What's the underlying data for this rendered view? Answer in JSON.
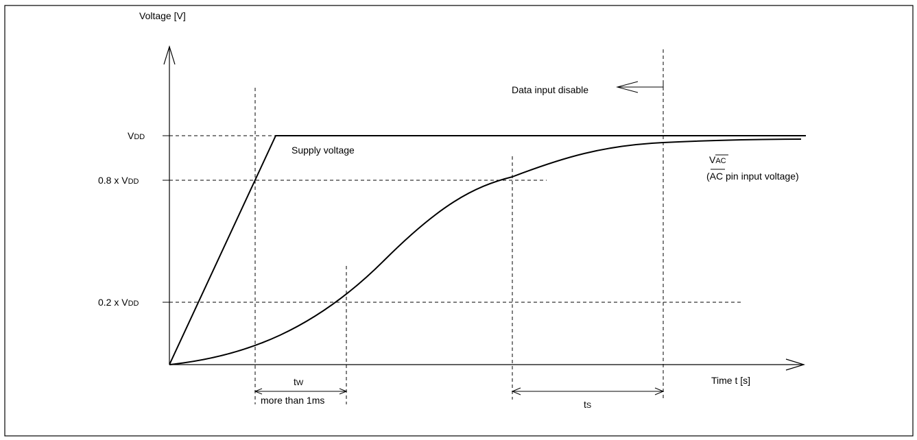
{
  "axes": {
    "y_label": "Voltage [V]",
    "x_label": "Time t [s]"
  },
  "y_ticks": {
    "vdd": {
      "main": "V",
      "sub": "DD"
    },
    "vdd_08": {
      "prefix": "0.8 x V",
      "sub": "DD"
    },
    "vdd_02": {
      "prefix": "0.2 x V",
      "sub": "DD"
    }
  },
  "curves": {
    "supply_label": "Supply voltage",
    "vac_main": "V",
    "vac_sub": "AC",
    "vac_desc_open": "(",
    "vac_desc_over": "AC",
    "vac_desc_rest": " pin input voltage)"
  },
  "annotations": {
    "data_input_disable": "Data input disable",
    "tw_main": "t",
    "tw_sub": "W",
    "tw_note": "more than 1ms",
    "ts_main": "t",
    "ts_sub": "S"
  },
  "colors": {
    "line": "#000000",
    "background": "#ffffff"
  }
}
